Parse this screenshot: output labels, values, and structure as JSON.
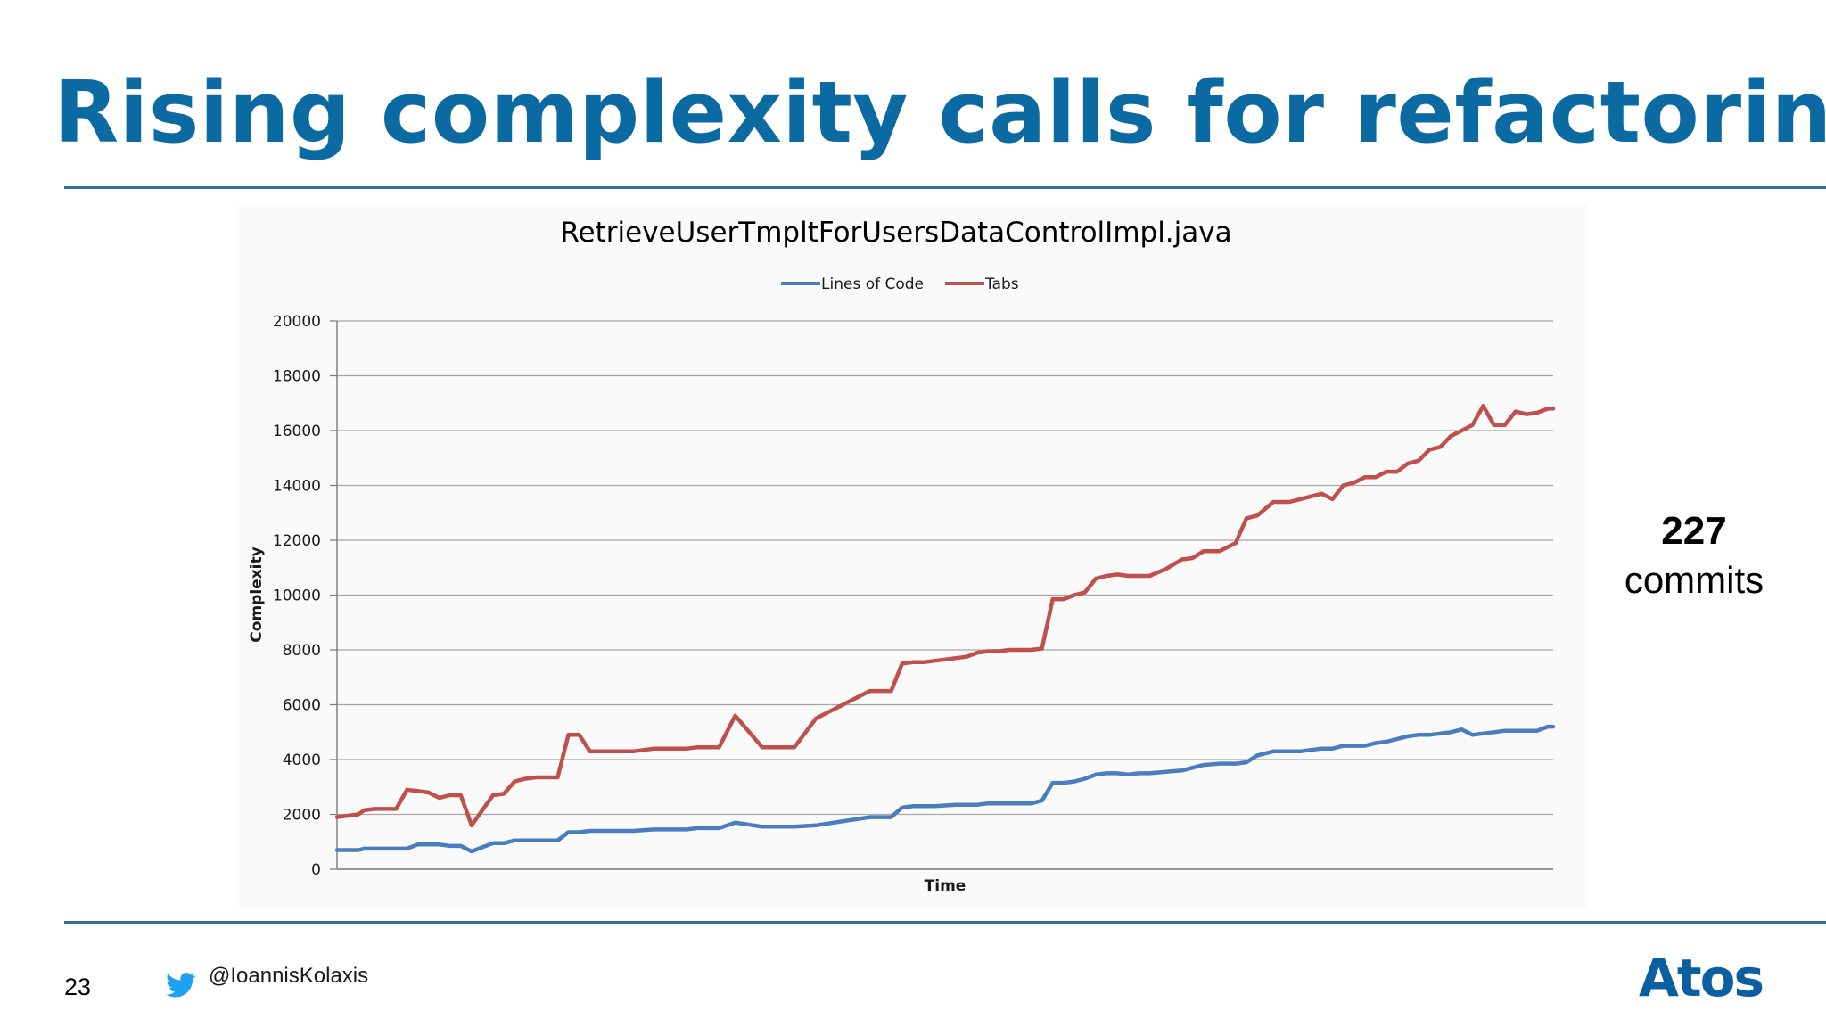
{
  "slide": {
    "title": "Rising complexity calls for refactoring",
    "page_number": "23",
    "twitter_handle": "@IoannisKolaxis",
    "logo_text": "Atos",
    "note_number": "227",
    "note_word": "commits",
    "accent_color": "#0b6aa2"
  },
  "chart_data": {
    "type": "line",
    "title": "RetrieveUserTmpltForUsersDataControlImpl.java",
    "xlabel": "Time",
    "ylabel": "Complexity",
    "ylim": [
      0,
      20000
    ],
    "yticks": [
      0,
      2000,
      4000,
      6000,
      8000,
      10000,
      12000,
      14000,
      16000,
      18000,
      20000
    ],
    "grid": true,
    "legend_position": "top",
    "x": [
      1,
      3,
      5,
      6,
      8,
      12,
      14,
      16,
      18,
      20,
      22,
      24,
      26,
      30,
      32,
      34,
      36,
      38,
      40,
      42,
      44,
      46,
      48,
      50,
      51,
      52,
      54,
      56,
      60,
      62,
      64,
      66,
      68,
      70,
      72,
      75,
      80,
      86,
      90,
      100,
      102,
      104,
      106,
      108,
      110,
      112,
      116,
      118,
      120,
      122,
      124,
      126,
      128,
      130,
      132,
      134,
      136,
      138,
      140,
      142,
      144,
      146,
      148,
      150,
      152,
      155,
      158,
      160,
      162,
      165,
      168,
      170,
      172,
      175,
      178,
      180,
      182,
      184,
      186,
      188,
      190,
      192,
      194,
      196,
      198,
      200,
      202,
      204,
      206,
      208,
      210,
      212,
      214,
      216,
      218,
      220,
      222,
      224,
      226,
      227
    ],
    "series": [
      {
        "name": "Lines of Code",
        "color": "#4a7dbd",
        "values": [
          700,
          700,
          700,
          750,
          750,
          750,
          750,
          900,
          900,
          900,
          850,
          850,
          650,
          950,
          950,
          1050,
          1050,
          1050,
          1050,
          1050,
          1350,
          1350,
          1400,
          1400,
          1400,
          1400,
          1400,
          1400,
          1450,
          1450,
          1450,
          1450,
          1500,
          1500,
          1500,
          1700,
          1550,
          1550,
          1600,
          1900,
          1900,
          1900,
          2250,
          2300,
          2300,
          2300,
          2350,
          2350,
          2350,
          2400,
          2400,
          2400,
          2400,
          2400,
          2500,
          3150,
          3150,
          3200,
          3300,
          3450,
          3500,
          3500,
          3450,
          3500,
          3500,
          3550,
          3600,
          3700,
          3800,
          3850,
          3850,
          3900,
          4150,
          4300,
          4300,
          4300,
          4350,
          4400,
          4400,
          4500,
          4500,
          4500,
          4600,
          4650,
          4750,
          4850,
          4900,
          4900,
          4950,
          5000,
          5100,
          4900,
          4950,
          5000,
          5050,
          5050,
          5050,
          5050,
          5200,
          5200
        ]
      },
      {
        "name": "Tabs",
        "color": "#c0504d",
        "values": [
          1900,
          1950,
          2000,
          2150,
          2200,
          2200,
          2900,
          2850,
          2800,
          2600,
          2700,
          2700,
          1600,
          2700,
          2750,
          3200,
          3300,
          3350,
          3350,
          3350,
          4900,
          4900,
          4300,
          4300,
          4300,
          4300,
          4300,
          4300,
          4400,
          4400,
          4400,
          4400,
          4450,
          4450,
          4450,
          5600,
          4450,
          4450,
          5500,
          6500,
          6500,
          6500,
          7500,
          7550,
          7550,
          7600,
          7700,
          7750,
          7900,
          7950,
          7950,
          8000,
          8000,
          8000,
          8050,
          9850,
          9850,
          10000,
          10100,
          10600,
          10700,
          10750,
          10700,
          10700,
          10700,
          10950,
          11300,
          11350,
          11600,
          11600,
          11900,
          12800,
          12900,
          13400,
          13400,
          13500,
          13600,
          13700,
          13500,
          14000,
          14100,
          14300,
          14300,
          14500,
          14500,
          14800,
          14900,
          15300,
          15400,
          15800,
          16000,
          16200,
          16900,
          16200,
          16200,
          16700,
          16600,
          16650,
          16800,
          16800
        ]
      }
    ]
  }
}
